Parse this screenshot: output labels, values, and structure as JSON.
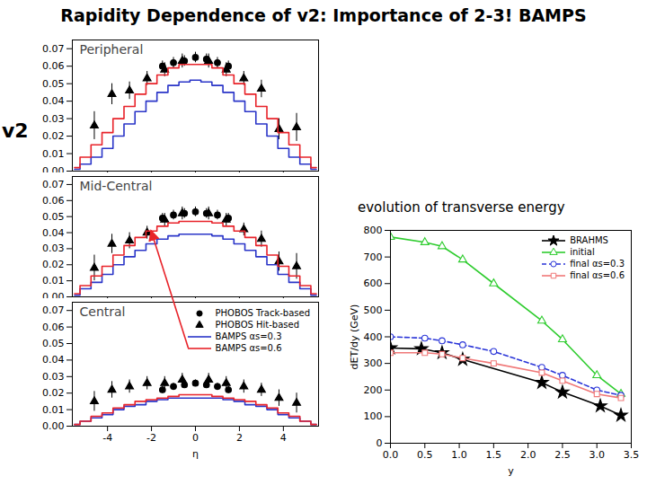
{
  "title": "Rapidity Dependence of v2: Importance of 2-3! BAMPS",
  "chart_data": [
    {
      "type": "line",
      "title": "Peripheral",
      "ylabel": "v2",
      "tick_labels": "y",
      "xlim": [
        -5.6,
        5.6
      ],
      "xticks": [
        -4,
        -2,
        0,
        2,
        4
      ],
      "ylim": [
        0,
        0.075
      ],
      "yticks": [
        {
          "value": 0,
          "label": "0.00"
        },
        0.01,
        0.02,
        0.03,
        0.04,
        0.05,
        0.06,
        0.07
      ],
      "series": [
        {
          "name": "PHOBOS Track-based",
          "type": "scatter",
          "marker": "circle",
          "color": "#000000",
          "x": [
            -1.5,
            -1,
            -0.5,
            0,
            0.5,
            1,
            1.5
          ],
          "values": [
            0.06,
            0.062,
            0.063,
            0.065,
            0.064,
            0.062,
            0.06
          ],
          "errors": [
            0.003,
            0.003,
            0.003,
            0.003,
            0.003,
            0.003,
            0.003
          ]
        },
        {
          "name": "PHOBOS Hit-based",
          "type": "scatter",
          "marker": "triangle",
          "color": "#000000",
          "x": [
            -4.6,
            -3.8,
            -3,
            -2.2,
            -1.4,
            -0.6,
            0.6,
            1.4,
            2.2,
            3,
            3.8,
            4.6
          ],
          "values": [
            0.026,
            0.044,
            0.046,
            0.053,
            0.058,
            0.063,
            0.063,
            0.058,
            0.053,
            0.047,
            0.024,
            0.025
          ],
          "errors": [
            0.008,
            0.006,
            0.005,
            0.004,
            0.004,
            0.004,
            0.004,
            0.004,
            0.004,
            0.005,
            0.006,
            0.008
          ]
        },
        {
          "name": "BAMPS αs=0.3",
          "type": "step",
          "color": "#2a35c8",
          "x": [
            -5.5,
            -5,
            -4.5,
            -4,
            -3.5,
            -3,
            -2.5,
            -2,
            -1.5,
            -1,
            -0.5,
            0,
            0.5,
            1,
            1.5,
            2,
            2.5,
            3,
            3.5,
            4,
            4.5,
            5,
            5.5
          ],
          "values": [
            0.001,
            0.004,
            0.008,
            0.013,
            0.02,
            0.027,
            0.034,
            0.04,
            0.045,
            0.049,
            0.051,
            0.052,
            0.051,
            0.049,
            0.045,
            0.04,
            0.034,
            0.027,
            0.02,
            0.013,
            0.008,
            0.004,
            0.001
          ]
        },
        {
          "name": "BAMPS αs=0.6",
          "type": "step",
          "color": "#e8232a",
          "x": [
            -5.5,
            -5,
            -4.5,
            -4,
            -3.5,
            -3,
            -2.5,
            -2,
            -1.5,
            -1,
            -0.5,
            0,
            0.5,
            1,
            1.5,
            2,
            2.5,
            3,
            3.5,
            4,
            4.5,
            5,
            5.5
          ],
          "values": [
            0.002,
            0.008,
            0.015,
            0.022,
            0.03,
            0.037,
            0.044,
            0.05,
            0.055,
            0.059,
            0.061,
            0.061,
            0.061,
            0.059,
            0.055,
            0.05,
            0.044,
            0.037,
            0.03,
            0.022,
            0.015,
            0.008,
            0.002
          ]
        }
      ]
    },
    {
      "type": "line",
      "title": "Mid-Central",
      "tick_labels": "y",
      "xlim": [
        -5.6,
        5.6
      ],
      "xticks": [
        -4,
        -2,
        0,
        2,
        4
      ],
      "ylim": [
        0,
        0.075
      ],
      "yticks": [
        {
          "value": 0,
          "label": "0.00"
        },
        0.01,
        0.02,
        0.03,
        0.04,
        0.05,
        0.06,
        0.07
      ],
      "series": [
        {
          "name": "PHOBOS Track-based",
          "type": "scatter",
          "marker": "circle",
          "color": "#000000",
          "x": [
            -1.5,
            -1,
            -0.5,
            0,
            0.5,
            1,
            1.5
          ],
          "values": [
            0.049,
            0.051,
            0.052,
            0.053,
            0.052,
            0.051,
            0.049
          ],
          "errors": [
            0.003,
            0.003,
            0.003,
            0.003,
            0.003,
            0.003,
            0.003
          ]
        },
        {
          "name": "PHOBOS Hit-based",
          "type": "scatter",
          "marker": "triangle",
          "color": "#000000",
          "x": [
            -4.6,
            -3.8,
            -3,
            -2.2,
            -1.4,
            -0.6,
            0.6,
            1.4,
            2.2,
            3,
            3.8,
            4.6
          ],
          "values": [
            0.018,
            0.033,
            0.035,
            0.04,
            0.048,
            0.052,
            0.052,
            0.048,
            0.042,
            0.036,
            0.022,
            0.019
          ],
          "errors": [
            0.008,
            0.006,
            0.005,
            0.004,
            0.004,
            0.004,
            0.004,
            0.004,
            0.004,
            0.005,
            0.006,
            0.008
          ]
        },
        {
          "name": "BAMPS αs=0.3",
          "type": "step",
          "color": "#2a35c8",
          "x": [
            -5.5,
            -5,
            -4.5,
            -4,
            -3.5,
            -3,
            -2.5,
            -2,
            -1.5,
            -1,
            -0.5,
            0,
            0.5,
            1,
            1.5,
            2,
            2.5,
            3,
            3.5,
            4,
            4.5,
            5,
            5.5
          ],
          "values": [
            0.001,
            0.005,
            0.009,
            0.014,
            0.02,
            0.025,
            0.029,
            0.033,
            0.036,
            0.038,
            0.039,
            0.039,
            0.039,
            0.038,
            0.036,
            0.033,
            0.029,
            0.025,
            0.02,
            0.014,
            0.009,
            0.005,
            0.001
          ]
        },
        {
          "name": "BAMPS αs=0.6",
          "type": "step",
          "color": "#e8232a",
          "x": [
            -5.5,
            -5,
            -4.5,
            -4,
            -3.5,
            -3,
            -2.5,
            -2,
            -1.5,
            -1,
            -0.5,
            0,
            0.5,
            1,
            1.5,
            2,
            2.5,
            3,
            3.5,
            4,
            4.5,
            5,
            5.5
          ],
          "values": [
            0.002,
            0.007,
            0.013,
            0.019,
            0.026,
            0.032,
            0.037,
            0.041,
            0.044,
            0.046,
            0.047,
            0.047,
            0.047,
            0.046,
            0.044,
            0.041,
            0.037,
            0.032,
            0.026,
            0.019,
            0.013,
            0.007,
            0.002
          ]
        }
      ]
    },
    {
      "type": "line",
      "title": "Central",
      "xlabel": "η",
      "legend": "upper right",
      "xlim": [
        -5.6,
        5.6
      ],
      "xticks": [
        -4,
        -2,
        0,
        2,
        4
      ],
      "ylim": [
        0,
        0.075
      ],
      "yticks": [
        {
          "value": 0,
          "label": "0.00"
        },
        0.01,
        0.02,
        0.03,
        0.04,
        0.05,
        0.06,
        0.07
      ],
      "series": [
        {
          "name": "PHOBOS Track-based",
          "type": "scatter",
          "marker": "circle",
          "color": "#000000",
          "x": [
            -1.5,
            -1,
            -0.5,
            0,
            0.5,
            1,
            1.5
          ],
          "values": [
            0.022,
            0.024,
            0.025,
            0.026,
            0.025,
            0.024,
            0.022
          ],
          "errors": [
            0.002,
            0.002,
            0.002,
            0.002,
            0.002,
            0.002,
            0.002
          ]
        },
        {
          "name": "PHOBOS Hit-based",
          "type": "scatter",
          "marker": "triangle",
          "color": "#000000",
          "x": [
            -4.6,
            -3.8,
            -3,
            -2.2,
            -1.4,
            -0.6,
            0.6,
            1.4,
            2.2,
            3,
            3.8,
            4.6
          ],
          "values": [
            0.015,
            0.022,
            0.024,
            0.026,
            0.026,
            0.028,
            0.028,
            0.026,
            0.024,
            0.022,
            0.017,
            0.014
          ],
          "errors": [
            0.006,
            0.005,
            0.004,
            0.004,
            0.004,
            0.004,
            0.004,
            0.004,
            0.004,
            0.004,
            0.005,
            0.006
          ]
        },
        {
          "name": "BAMPS αs=0.3",
          "type": "step",
          "color": "#2a35c8",
          "x": [
            -5.5,
            -5,
            -4.5,
            -4,
            -3.5,
            -3,
            -2.5,
            -2,
            -1.5,
            -1,
            -0.5,
            0,
            0.5,
            1,
            1.5,
            2,
            2.5,
            3,
            3.5,
            4,
            4.5,
            5,
            5.5
          ],
          "values": [
            0.001,
            0.003,
            0.005,
            0.007,
            0.01,
            0.012,
            0.013,
            0.015,
            0.016,
            0.017,
            0.017,
            0.017,
            0.017,
            0.017,
            0.016,
            0.015,
            0.013,
            0.012,
            0.01,
            0.007,
            0.005,
            0.003,
            0.001
          ]
        },
        {
          "name": "BAMPS αs=0.6",
          "type": "step",
          "color": "#e8232a",
          "x": [
            -5.5,
            -5,
            -4.5,
            -4,
            -3.5,
            -3,
            -2.5,
            -2,
            -1.5,
            -1,
            -0.5,
            0,
            0.5,
            1,
            1.5,
            2,
            2.5,
            3,
            3.5,
            4,
            4.5,
            5,
            5.5
          ],
          "values": [
            0.001,
            0.003,
            0.006,
            0.008,
            0.011,
            0.013,
            0.015,
            0.016,
            0.017,
            0.018,
            0.019,
            0.019,
            0.019,
            0.018,
            0.017,
            0.016,
            0.015,
            0.013,
            0.011,
            0.008,
            0.006,
            0.003,
            0.001
          ]
        }
      ]
    },
    {
      "type": "line",
      "title": "evolution of transverse energy",
      "xlabel": "y",
      "ylabel": "dET/dy (GeV)",
      "legend": "upper right",
      "xlim": [
        0,
        3.5
      ],
      "xticks": [
        {
          "value": 0,
          "label": "0.0"
        },
        0.5,
        {
          "value": 1,
          "label": "1.0"
        },
        1.5,
        {
          "value": 2,
          "label": "2.0"
        },
        2.5,
        {
          "value": 3,
          "label": "3.0"
        },
        3.5
      ],
      "ylim": [
        0,
        800
      ],
      "yticks": [
        0,
        100,
        200,
        300,
        400,
        500,
        600,
        700,
        800
      ],
      "series": [
        {
          "name": "BRAHMS",
          "marker": "star",
          "line_style": "solid",
          "color": "#000000",
          "x": [
            0,
            0.45,
            0.75,
            1.05,
            2.2,
            2.5,
            3.05,
            3.35
          ],
          "values": [
            358,
            355,
            340,
            315,
            228,
            192,
            140,
            105
          ]
        },
        {
          "name": "initial",
          "marker": "open-triangle",
          "line_style": "solid",
          "color": "#2ecc2e",
          "x": [
            0,
            0.5,
            0.75,
            1.05,
            1.5,
            2.2,
            2.5,
            3,
            3.35
          ],
          "values": [
            775,
            755,
            740,
            690,
            600,
            460,
            390,
            255,
            185
          ]
        },
        {
          "name": "final αs=0.3",
          "marker": "open-circle",
          "line_style": "dashed",
          "color": "#2a35d8",
          "x": [
            0,
            0.5,
            0.75,
            1.05,
            1.5,
            2.2,
            2.5,
            3,
            3.35
          ],
          "values": [
            400,
            395,
            385,
            370,
            345,
            285,
            255,
            200,
            180
          ]
        },
        {
          "name": "final αs=0.6",
          "marker": "open-square",
          "line_style": "solid",
          "color": "#f07878",
          "x": [
            0,
            0.5,
            0.75,
            1.05,
            1.5,
            2.2,
            2.5,
            3,
            3.35
          ],
          "values": [
            340,
            340,
            335,
            320,
            300,
            265,
            235,
            185,
            170
          ]
        }
      ]
    }
  ]
}
